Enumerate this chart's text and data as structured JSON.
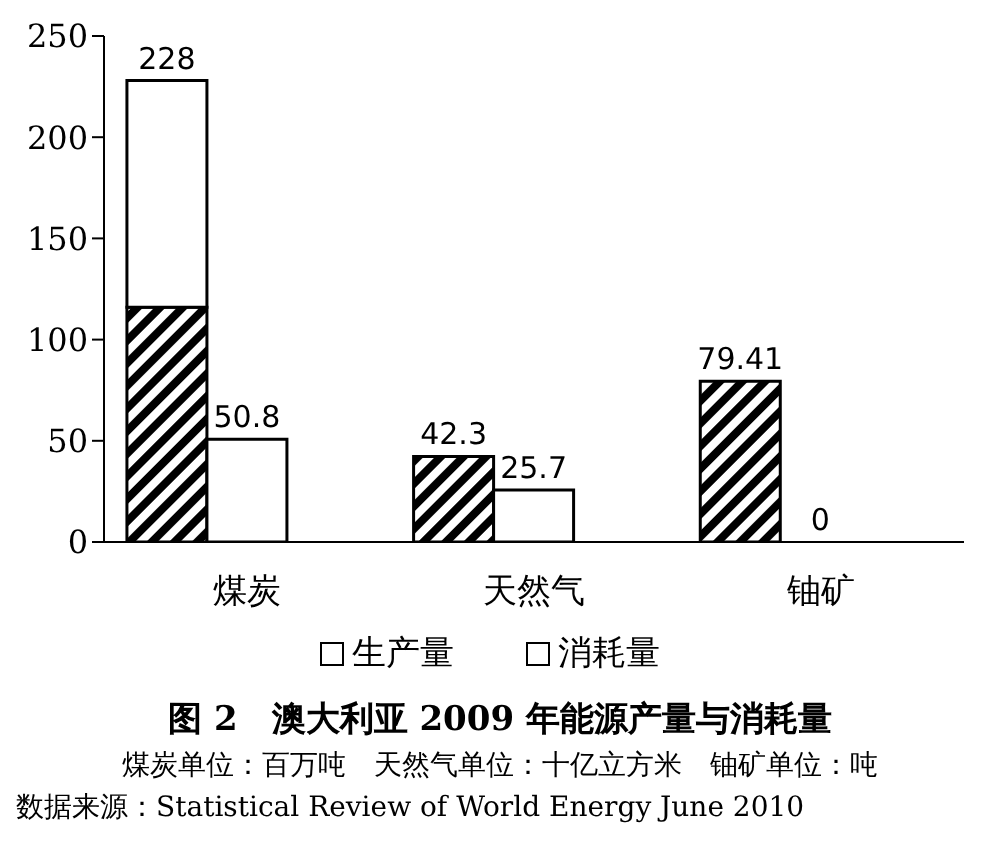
{
  "chart_data": {
    "type": "bar",
    "title": "图 2　澳大利亚 2009 年能源产量与消耗量",
    "categories": [
      "煤炭",
      "天然气",
      "铀矿"
    ],
    "series": [
      {
        "color": "#000000",
        "values": [
          116,
          42.3,
          79.41
        ],
        "value_labels": [
          null,
          "42.3",
          "79.41"
        ]
      },
      {
        "name": "消耗量",
        "color": "#ffffff",
        "values": [
          50.8,
          25.7,
          0
        ],
        "value_labels": [
          "50.8",
          "25.7",
          "0"
        ]
      },
      {
        "name": "生产量",
        "color": "#ffffff",
        "values": [
          112,
          null,
          null
        ],
        "base": [
          116,
          null,
          null
        ],
        "value_labels": [
          "228",
          null,
          null
        ]
      }
    ],
    "ylim": [
      0,
      250
    ],
    "yticks": [
      0,
      50,
      100,
      150,
      200,
      250
    ],
    "grid": false,
    "legend": "bottom",
    "annotations": [
      "煤炭单位：百万吨　天然气单位：十亿立方米　铀矿单位：吨",
      "数据来源：Statistical Review of World Energy June 2010"
    ]
  }
}
